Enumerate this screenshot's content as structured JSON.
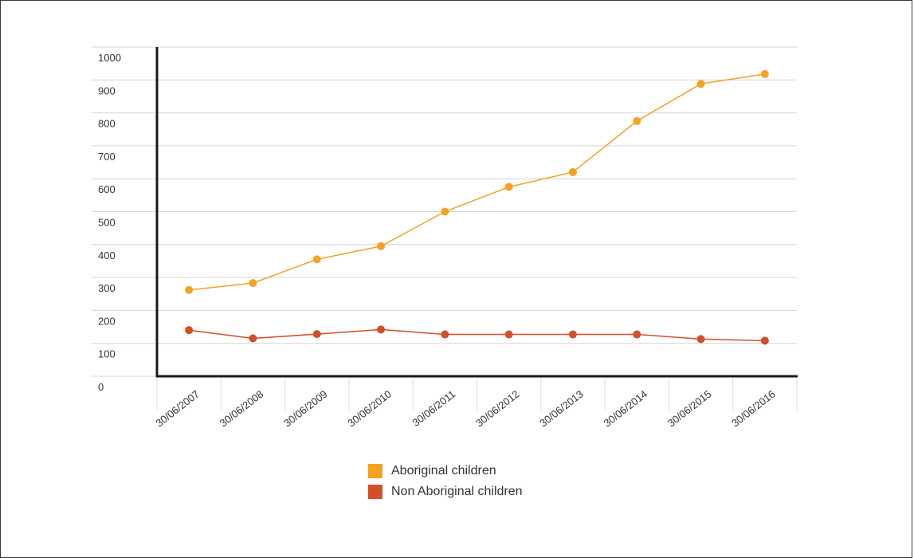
{
  "chart_data": {
    "type": "line",
    "categories": [
      "30/06/2007",
      "30/06/2008",
      "30/06/2009",
      "30/06/2010",
      "30/06/2011",
      "30/06/2012",
      "30/06/2013",
      "30/06/2014",
      "30/06/2015",
      "30/06/2016"
    ],
    "series": [
      {
        "name": "Aboriginal children",
        "color": "#f4a21f",
        "values": [
          262,
          283,
          355,
          395,
          500,
          575,
          620,
          775,
          888,
          918
        ]
      },
      {
        "name": "Non Aboriginal children",
        "color": "#d24f28",
        "values": [
          140,
          115,
          128,
          142,
          127,
          127,
          127,
          127,
          113,
          108
        ]
      }
    ],
    "yticks": [
      0,
      100,
      200,
      300,
      400,
      500,
      600,
      700,
      800,
      900,
      1000
    ],
    "ylim": [
      0,
      1000
    ],
    "grid": true,
    "legend_position": "bottom"
  }
}
